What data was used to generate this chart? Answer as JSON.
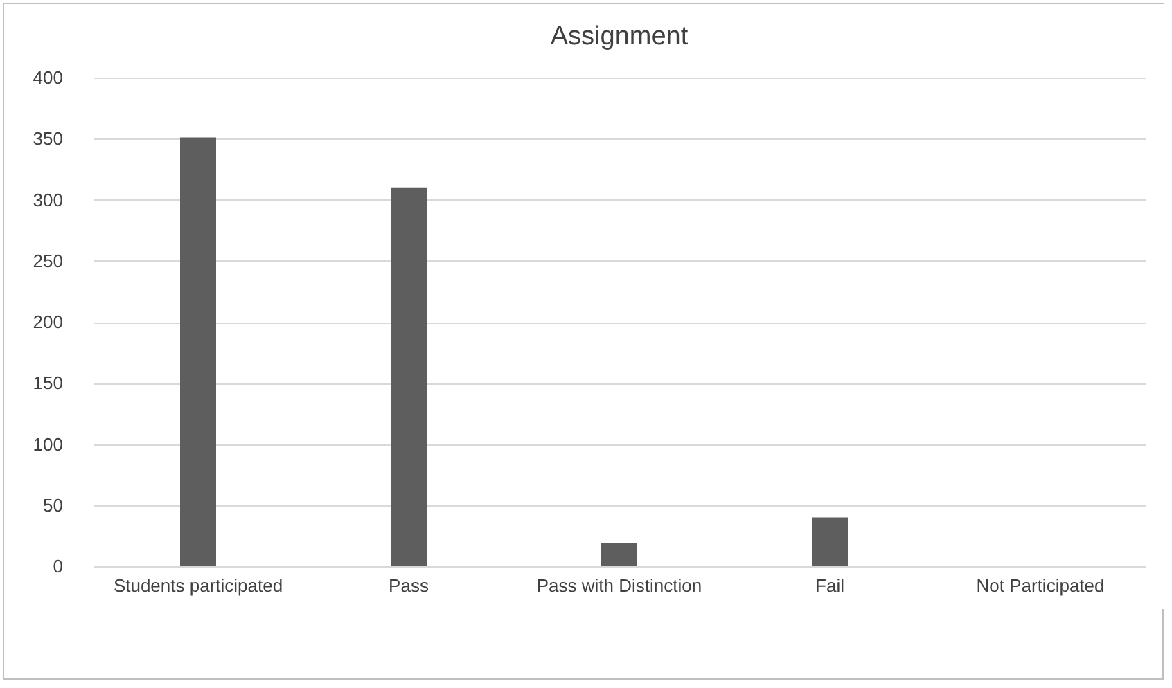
{
  "chart_data": {
    "type": "bar",
    "title": "Assignment",
    "categories": [
      "Students participated",
      "Pass",
      "Pass with Distinction",
      "Fail",
      "Not Participated"
    ],
    "values": [
      351,
      310,
      19,
      40,
      0
    ],
    "color": "#5e5e5e",
    "ylim": [
      0,
      400
    ],
    "yticks": [
      0,
      50,
      100,
      150,
      200,
      250,
      300,
      350,
      400
    ],
    "grid": "y"
  }
}
